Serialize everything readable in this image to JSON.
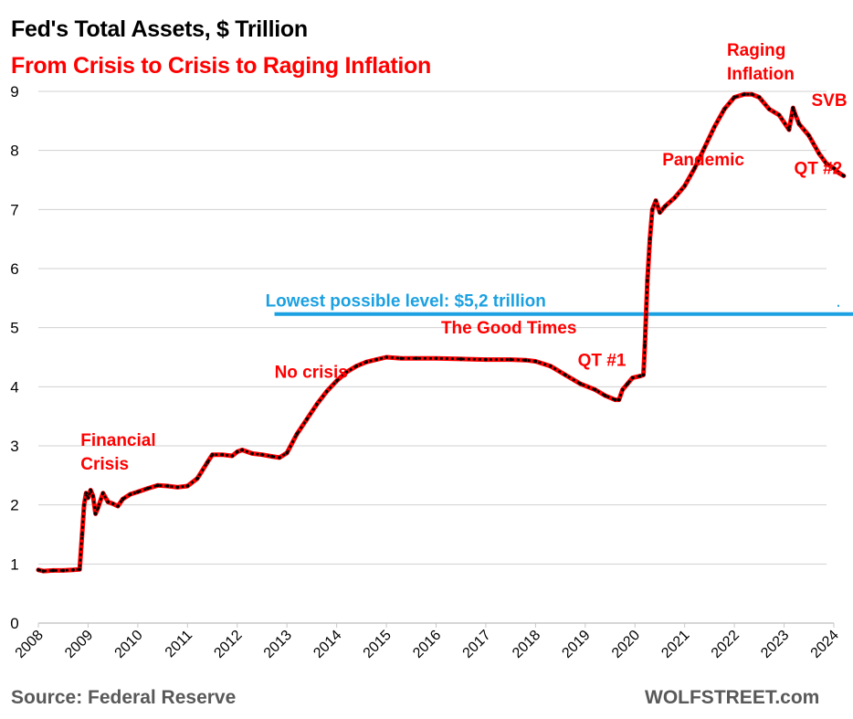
{
  "chart_data": {
    "type": "line",
    "title": "Fed's Total Assets, $ Trillion",
    "subtitle": "From Crisis to Crisis to Raging Inflation",
    "xlabel": "",
    "ylabel": "",
    "xlim": [
      2008,
      2024
    ],
    "ylim": [
      0,
      9
    ],
    "grid": true,
    "yticks": [
      "0",
      "1",
      "2",
      "3",
      "4",
      "5",
      "6",
      "7",
      "8",
      "9"
    ],
    "xticks": [
      "2008",
      "2009",
      "2010",
      "2011",
      "2012",
      "2013",
      "2014",
      "2015",
      "2016",
      "2017",
      "2018",
      "2019",
      "2020",
      "2021",
      "2022",
      "2023",
      "2024"
    ],
    "series": [
      {
        "name": "Fed Total Assets",
        "color": "#ff0000",
        "marker_color": "#000000",
        "x": [
          2008.0,
          2008.1,
          2008.3,
          2008.5,
          2008.7,
          2008.83,
          2008.88,
          2008.92,
          2008.96,
          2009.0,
          2009.05,
          2009.1,
          2009.15,
          2009.2,
          2009.3,
          2009.4,
          2009.5,
          2009.6,
          2009.7,
          2009.85,
          2010.0,
          2010.2,
          2010.4,
          2010.6,
          2010.8,
          2011.0,
          2011.2,
          2011.4,
          2011.5,
          2011.7,
          2011.9,
          2012.0,
          2012.1,
          2012.3,
          2012.5,
          2012.7,
          2012.85,
          2013.0,
          2013.2,
          2013.4,
          2013.6,
          2013.8,
          2014.0,
          2014.2,
          2014.4,
          2014.6,
          2014.8,
          2015.0,
          2015.3,
          2015.6,
          2016.0,
          2016.5,
          2017.0,
          2017.5,
          2017.8,
          2018.0,
          2018.3,
          2018.6,
          2018.9,
          2019.2,
          2019.4,
          2019.6,
          2019.68,
          2019.75,
          2019.85,
          2019.95,
          2020.1,
          2020.17,
          2020.2,
          2020.25,
          2020.3,
          2020.35,
          2020.42,
          2020.5,
          2020.6,
          2020.8,
          2021.0,
          2021.2,
          2021.4,
          2021.6,
          2021.8,
          2022.0,
          2022.2,
          2022.35,
          2022.5,
          2022.7,
          2022.9,
          2023.1,
          2023.18,
          2023.22,
          2023.3,
          2023.5,
          2023.7,
          2023.85,
          2024.0,
          2024.1,
          2024.2
        ],
        "values": [
          0.9,
          0.88,
          0.89,
          0.89,
          0.9,
          0.91,
          1.5,
          2.0,
          2.2,
          2.12,
          2.25,
          2.15,
          1.85,
          1.95,
          2.2,
          2.05,
          2.02,
          1.98,
          2.1,
          2.18,
          2.22,
          2.28,
          2.33,
          2.32,
          2.3,
          2.32,
          2.45,
          2.72,
          2.85,
          2.85,
          2.83,
          2.9,
          2.93,
          2.87,
          2.85,
          2.82,
          2.8,
          2.88,
          3.2,
          3.45,
          3.7,
          3.92,
          4.1,
          4.25,
          4.35,
          4.42,
          4.46,
          4.5,
          4.48,
          4.48,
          4.48,
          4.47,
          4.46,
          4.46,
          4.45,
          4.43,
          4.35,
          4.2,
          4.05,
          3.95,
          3.85,
          3.78,
          3.78,
          3.95,
          4.05,
          4.15,
          4.18,
          4.2,
          4.7,
          5.8,
          6.5,
          7.0,
          7.15,
          6.95,
          7.05,
          7.2,
          7.4,
          7.7,
          8.05,
          8.4,
          8.7,
          8.9,
          8.95,
          8.95,
          8.9,
          8.7,
          8.6,
          8.35,
          8.72,
          8.62,
          8.45,
          8.25,
          7.95,
          7.78,
          7.7,
          7.62,
          7.57
        ]
      }
    ],
    "reference_lines": [
      {
        "label": "Lowest possible level: $5,2 trillion",
        "value": 5.2,
        "x_start": 2012.75,
        "color": "#1ba1e2"
      }
    ],
    "annotations": [
      {
        "text": "Financial",
        "x": 2008.85,
        "y": 3.0
      },
      {
        "text": "Crisis",
        "x": 2008.85,
        "y": 2.6
      },
      {
        "text": "No crisis",
        "x": 2012.75,
        "y": 4.15
      },
      {
        "text": "The Good Times",
        "x": 2016.1,
        "y": 4.9
      },
      {
        "text": "QT #1",
        "x": 2018.85,
        "y": 4.35
      },
      {
        "text": "Pandemic",
        "x": 2020.55,
        "y": 7.75
      },
      {
        "text": "Raging",
        "x": 2021.85,
        "y": 9.6
      },
      {
        "text": "Inflation",
        "x": 2021.85,
        "y": 9.2
      },
      {
        "text": "SVB",
        "x": 2023.55,
        "y": 8.75
      },
      {
        "text": "QT #2",
        "x": 2023.2,
        "y": 7.6
      }
    ]
  },
  "footer": {
    "source": "Source: Federal Reserve",
    "brand": "WOLFSTREET.com"
  }
}
